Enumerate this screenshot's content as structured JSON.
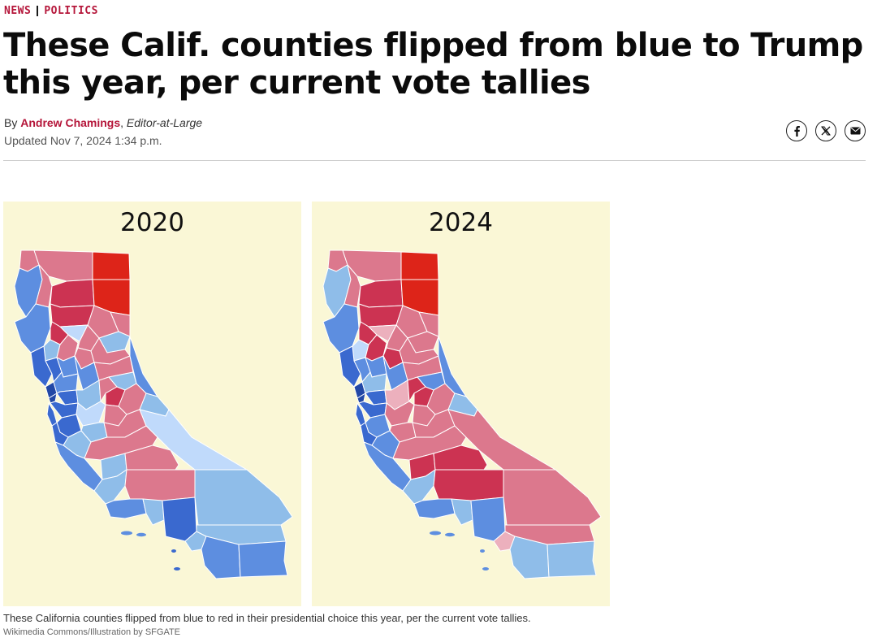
{
  "kicker": {
    "section": "NEWS",
    "subsection": "POLITICS"
  },
  "headline": "These Calif. counties flipped from blue to Trump this year, per current vote tallies",
  "byline": {
    "prefix": "By",
    "author": "Andrew Chamings",
    "role": "Editor-at-Large"
  },
  "updated": "Updated Nov 7, 2024 1:34 p.m.",
  "share": {
    "icons": [
      "facebook-icon",
      "x-icon",
      "email-icon"
    ]
  },
  "figure": {
    "left_year": "2020",
    "right_year": "2024",
    "caption": "These California counties flipped from blue to red in their presidential choice this year, per the current vote tallies.",
    "credit": "Wikimedia Commons/Illustration by SFGATE"
  },
  "colors": {
    "accent": "#b5163a",
    "map_background": "#faf7d6",
    "deep_red": "#dd2419",
    "red": "#cc3352",
    "pink_red": "#dc788d",
    "light_pink": "#ecb0bd",
    "light_blue": "#c0dafb",
    "mid_blue": "#8fbde9",
    "blue": "#5d8ee0",
    "dark_blue": "#3a69cf",
    "navy": "#2248a6"
  }
}
